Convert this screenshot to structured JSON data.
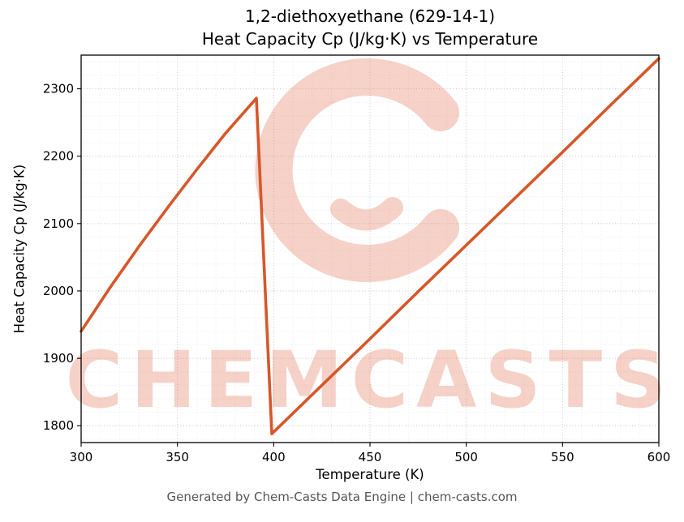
{
  "title": {
    "line1": "1,2-diethoxyethane (629-14-1)",
    "line2": "Heat Capacity Cp (J/kg·K) vs Temperature"
  },
  "footer": {
    "text": "Generated by Chem-Casts Data Engine | chem-casts.com"
  },
  "watermark": {
    "text": "CHEMCASTS",
    "color": "#e0694b"
  },
  "chart_data": {
    "type": "line",
    "title": "1,2-diethoxyethane (629-14-1) — Heat Capacity Cp (J/kg·K) vs Temperature",
    "xlabel": "Temperature (K)",
    "ylabel": "Heat Capacity Cp (J/kg·K)",
    "xlim": [
      300,
      600
    ],
    "ylim": [
      1775,
      2350
    ],
    "xticks": [
      300,
      350,
      400,
      450,
      500,
      550,
      600
    ],
    "yticks": [
      1800,
      1900,
      2000,
      2100,
      2200,
      2300
    ],
    "x_minor_step": 10,
    "y_minor_step": 20,
    "grid": true,
    "legend": false,
    "line_color": "#d6572a",
    "series": [
      {
        "name": "Heat Capacity Cp",
        "points": [
          [
            300,
            1940
          ],
          [
            315,
            2005
          ],
          [
            330,
            2066
          ],
          [
            345,
            2124
          ],
          [
            360,
            2180
          ],
          [
            375,
            2234
          ],
          [
            391,
            2286
          ],
          [
            399,
            1788
          ],
          [
            425,
            1860
          ],
          [
            450,
            1929
          ],
          [
            475,
            1999
          ],
          [
            500,
            2068
          ],
          [
            525,
            2137
          ],
          [
            550,
            2206
          ],
          [
            575,
            2276
          ],
          [
            600,
            2345
          ]
        ]
      }
    ]
  }
}
